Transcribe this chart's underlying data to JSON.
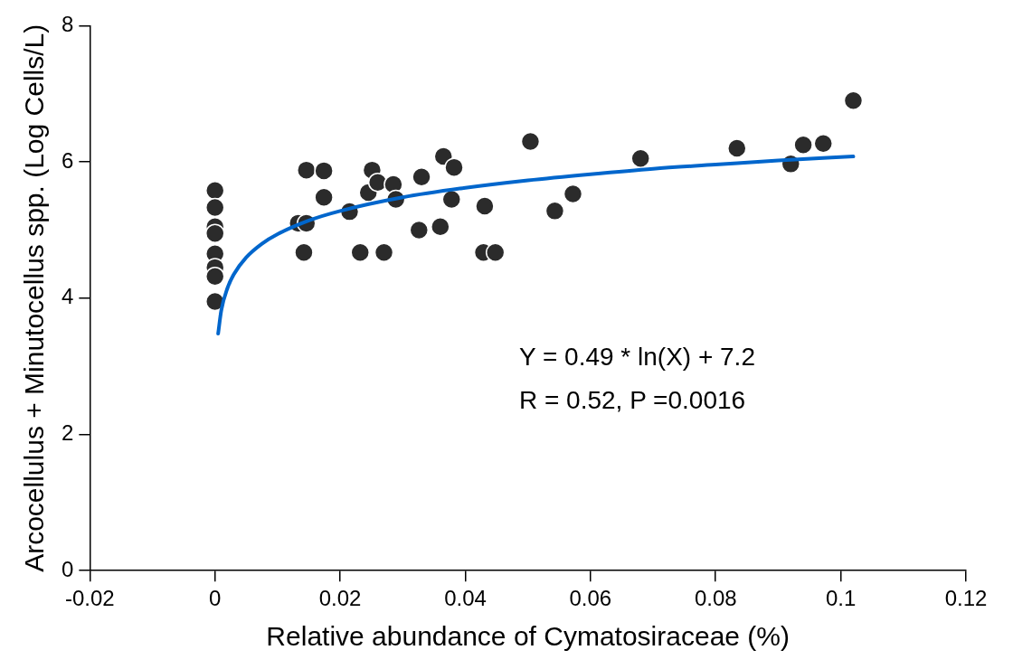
{
  "chart_data": {
    "type": "scatter",
    "xlabel": "Relative abundance of Cymatosiraceae (%)",
    "ylabel": "Arcocellulus + Minutocellus spp. (Log Cells/L)",
    "xlim": [
      -0.02,
      0.12
    ],
    "xticks": [
      -0.02,
      0,
      0.02,
      0.04,
      0.06,
      0.08,
      0.1,
      0.12
    ],
    "ylim": [
      0,
      8
    ],
    "yticks": [
      0,
      2,
      4,
      6,
      8
    ],
    "grid": false,
    "legend": false,
    "marker": "circle",
    "annotations": [
      "Y = 0.49 * ln(X) + 7.2",
      "R = 0.52, P =0.0016"
    ],
    "series": [
      {
        "type": "scatter",
        "color": "#2b2b2b",
        "x": [
          0,
          0,
          0,
          0,
          0,
          0,
          0,
          0,
          0.0146,
          0.0174,
          0.0174,
          0.0133,
          0.0146,
          0.0142,
          0.0215,
          0.0232,
          0.027,
          0.0251,
          0.0245,
          0.026,
          0.0285,
          0.0289,
          0.033,
          0.0326,
          0.0365,
          0.036,
          0.0382,
          0.0378,
          0.0431,
          0.0429,
          0.0448,
          0.0504,
          0.0543,
          0.0572,
          0.068,
          0.0834,
          0.092,
          0.094,
          0.0972,
          0.102
        ],
        "values": [
          5.58,
          5.33,
          5.05,
          4.95,
          4.65,
          4.45,
          4.32,
          3.95,
          5.88,
          5.87,
          5.48,
          5.1,
          5.1,
          4.67,
          5.27,
          4.67,
          4.67,
          5.88,
          5.55,
          5.7,
          5.67,
          5.45,
          5.78,
          5.0,
          6.08,
          5.05,
          5.92,
          5.45,
          5.35,
          4.67,
          4.67,
          6.3,
          5.28,
          5.53,
          6.05,
          6.2,
          5.97,
          6.25,
          6.27,
          6.9
        ]
      },
      {
        "type": "line",
        "color": "#0066cc",
        "marker": "none",
        "x": [
          0.0005,
          0.001,
          0.002,
          0.003,
          0.005,
          0.0075,
          0.01,
          0.015,
          0.02,
          0.03,
          0.04,
          0.05,
          0.06,
          0.07,
          0.08,
          0.09,
          0.102
        ],
        "values": [
          3.48,
          3.82,
          4.15,
          4.35,
          4.6,
          4.8,
          4.94,
          5.14,
          5.28,
          5.48,
          5.62,
          5.73,
          5.82,
          5.9,
          5.96,
          6.02,
          6.08
        ]
      }
    ]
  }
}
